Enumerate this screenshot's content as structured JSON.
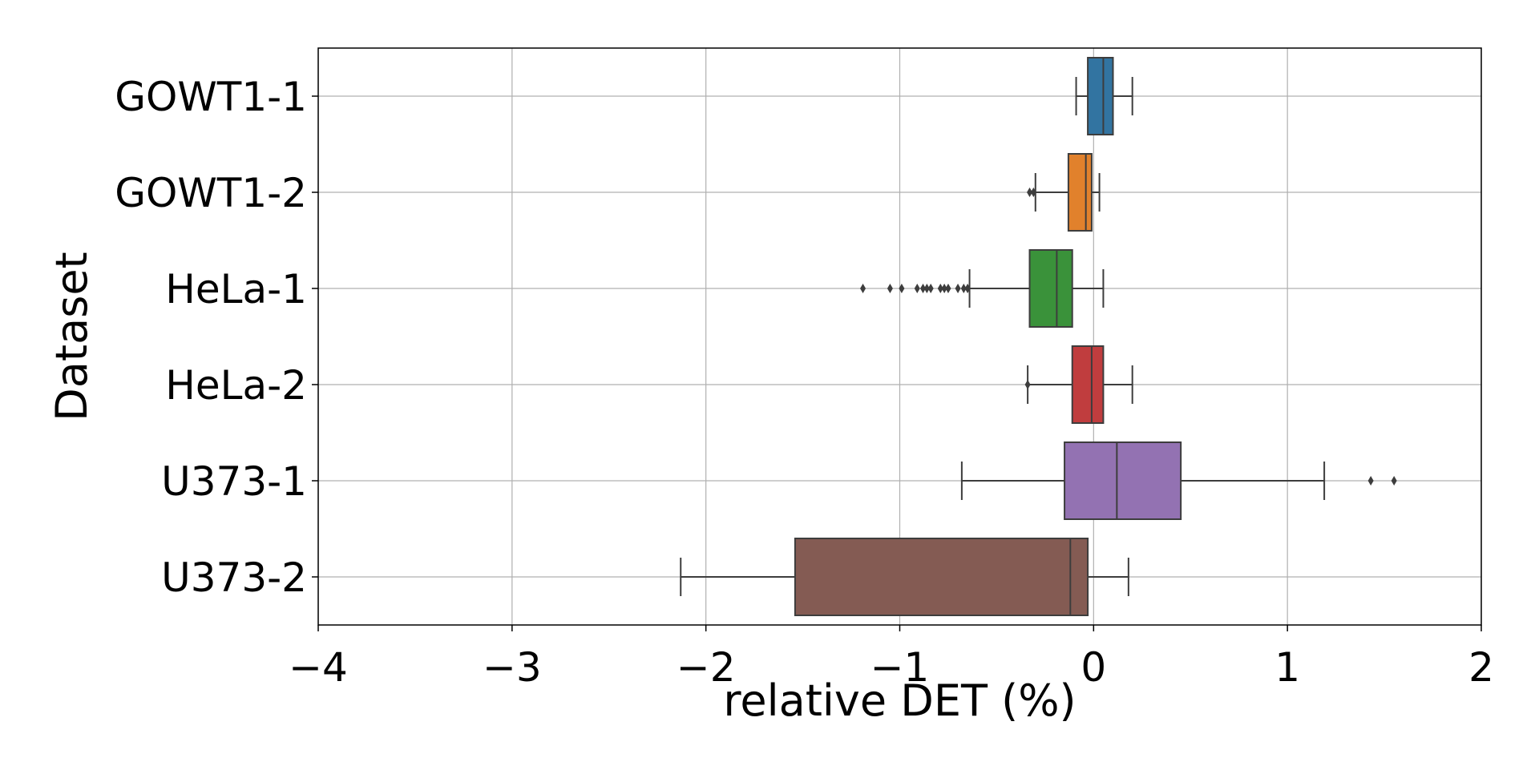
{
  "chart_data": {
    "type": "box",
    "orientation": "horizontal",
    "title": "",
    "xlabel": "relative DET (%)",
    "ylabel": "Dataset",
    "xlim": [
      -4,
      2
    ],
    "xticks": [
      -4,
      -3,
      -2,
      -1,
      0,
      1,
      2
    ],
    "xtick_labels": [
      "−4",
      "−3",
      "−2",
      "−1",
      "0",
      "1",
      "2"
    ],
    "grid": true,
    "categories": [
      "GOWT1-1",
      "GOWT1-2",
      "HeLa-1",
      "HeLa-2",
      "U373-1",
      "U373-2"
    ],
    "series": [
      {
        "name": "GOWT1-1",
        "color": "#3274a1",
        "whisker_low": -0.09,
        "q1": -0.03,
        "median": 0.05,
        "q3": 0.1,
        "whisker_high": 0.2,
        "outliers": []
      },
      {
        "name": "GOWT1-2",
        "color": "#e1812c",
        "whisker_low": -0.3,
        "q1": -0.13,
        "median": -0.04,
        "q3": -0.01,
        "whisker_high": 0.03,
        "outliers": [
          -0.33,
          -0.31
        ]
      },
      {
        "name": "HeLa-1",
        "color": "#3a923a",
        "whisker_low": -0.64,
        "q1": -0.33,
        "median": -0.19,
        "q3": -0.11,
        "whisker_high": 0.05,
        "outliers": [
          -1.19,
          -1.05,
          -0.99,
          -0.91,
          -0.88,
          -0.86,
          -0.84,
          -0.79,
          -0.77,
          -0.75,
          -0.7,
          -0.67,
          -0.65
        ]
      },
      {
        "name": "HeLa-2",
        "color": "#c03d3e",
        "whisker_low": -0.34,
        "q1": -0.11,
        "median": -0.01,
        "q3": 0.05,
        "whisker_high": 0.2,
        "outliers": [
          -0.34
        ]
      },
      {
        "name": "U373-1",
        "color": "#9372b2",
        "whisker_low": -0.68,
        "q1": -0.15,
        "median": 0.12,
        "q3": 0.45,
        "whisker_high": 1.19,
        "outliers": [
          1.43,
          1.55
        ]
      },
      {
        "name": "U373-2",
        "color": "#845b53",
        "whisker_low": -2.13,
        "q1": -1.54,
        "median": -0.12,
        "q3": -0.03,
        "whisker_high": 0.18,
        "outliers": []
      }
    ]
  }
}
